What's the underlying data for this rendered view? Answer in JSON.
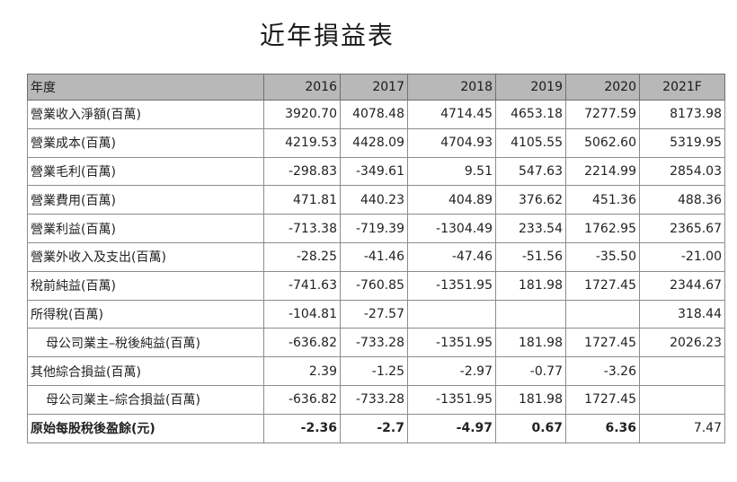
{
  "title": "近年損益表",
  "table": {
    "header": {
      "label": "年度",
      "years": [
        "2016",
        "2017",
        "2018",
        "2019",
        "2020",
        "2021F"
      ]
    },
    "rows": [
      {
        "label": "營業收入淨額(百萬)",
        "values": [
          "3920.70",
          "4078.48",
          "4714.45",
          "4653.18",
          "7277.59",
          "8173.98"
        ]
      },
      {
        "label": "營業成本(百萬)",
        "values": [
          "4219.53",
          "4428.09",
          "4704.93",
          "4105.55",
          "5062.60",
          "5319.95"
        ]
      },
      {
        "label": "營業毛利(百萬)",
        "values": [
          "-298.83",
          "-349.61",
          "9.51",
          "547.63",
          "2214.99",
          "2854.03"
        ]
      },
      {
        "label": "營業費用(百萬)",
        "values": [
          "471.81",
          "440.23",
          "404.89",
          "376.62",
          "451.36",
          "488.36"
        ]
      },
      {
        "label": "營業利益(百萬)",
        "values": [
          "-713.38",
          "-719.39",
          "-1304.49",
          "233.54",
          "1762.95",
          "2365.67"
        ]
      },
      {
        "label": "營業外收入及支出(百萬)",
        "values": [
          "-28.25",
          "-41.46",
          "-47.46",
          "-51.56",
          "-35.50",
          "-21.00"
        ]
      },
      {
        "label": "稅前純益(百萬)",
        "values": [
          "-741.63",
          "-760.85",
          "-1351.95",
          "181.98",
          "1727.45",
          "2344.67"
        ]
      },
      {
        "label": "所得稅(百萬)",
        "values": [
          "-104.81",
          "-27.57",
          "",
          "",
          "",
          "318.44"
        ]
      },
      {
        "label": "母公司業主–稅後純益(百萬)",
        "values": [
          "-636.82",
          "-733.28",
          "-1351.95",
          "181.98",
          "1727.45",
          "2026.23"
        ]
      },
      {
        "label": "其他綜合損益(百萬)",
        "values": [
          "2.39",
          "-1.25",
          "-2.97",
          "-0.77",
          "-3.26",
          ""
        ]
      },
      {
        "label": "母公司業主–綜合損益(百萬)",
        "values": [
          "-636.82",
          "-733.28",
          "-1351.95",
          "181.98",
          "1727.45",
          ""
        ]
      },
      {
        "label": "原始每股稅後盈餘(元)",
        "values": [
          "-2.36",
          "-2.7",
          "-4.97",
          "0.67",
          "6.36",
          "7.47"
        ]
      }
    ]
  }
}
